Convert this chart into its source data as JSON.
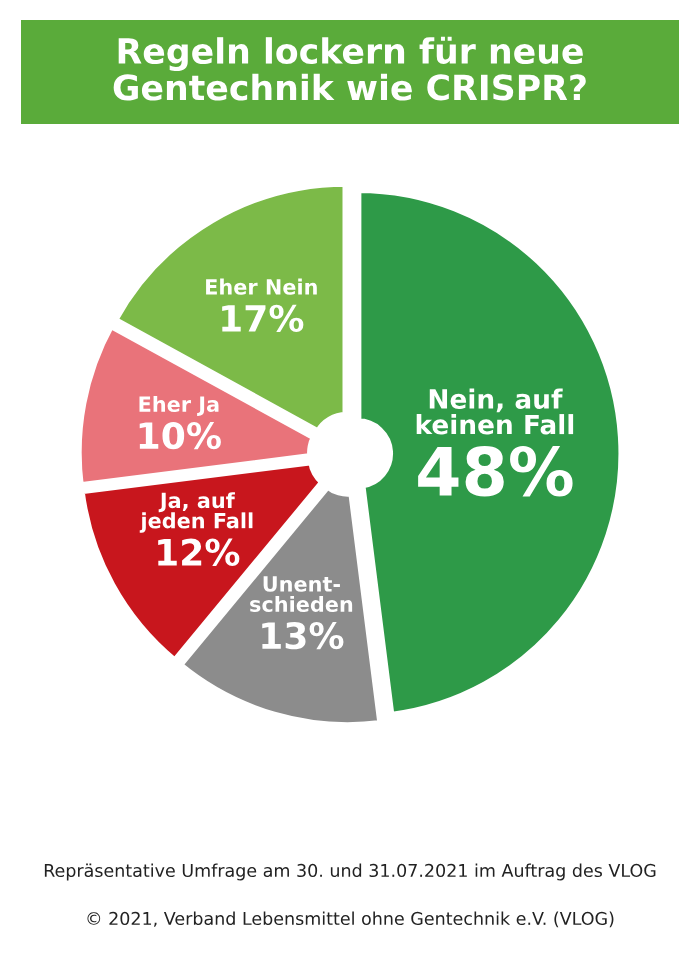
{
  "chart_data": {
    "type": "pie",
    "title": "Regeln lockern für neue\nGentechnik wie CRISPR?",
    "categories": [
      "Nein, auf\nkeinen Fall",
      "Unent-\nschieden",
      "Ja, auf\njeden Fall",
      "Eher Ja",
      "Eher Nein"
    ],
    "values": [
      48,
      13,
      12,
      10,
      17
    ],
    "value_labels": [
      "48%",
      "13%",
      "12%",
      "10%",
      "17%"
    ],
    "colors": [
      "#2e9a48",
      "#8c8c8c",
      "#c8161d",
      "#e9737a",
      "#7cba48"
    ],
    "legend": false,
    "annotations": [
      "Repräsentative Umfrage am 30. und 31.07.2021 im Auftrag des VLOG",
      "© 2021, Verband Lebensmittel ohne Gentechnik e.V. (VLOG)"
    ]
  }
}
